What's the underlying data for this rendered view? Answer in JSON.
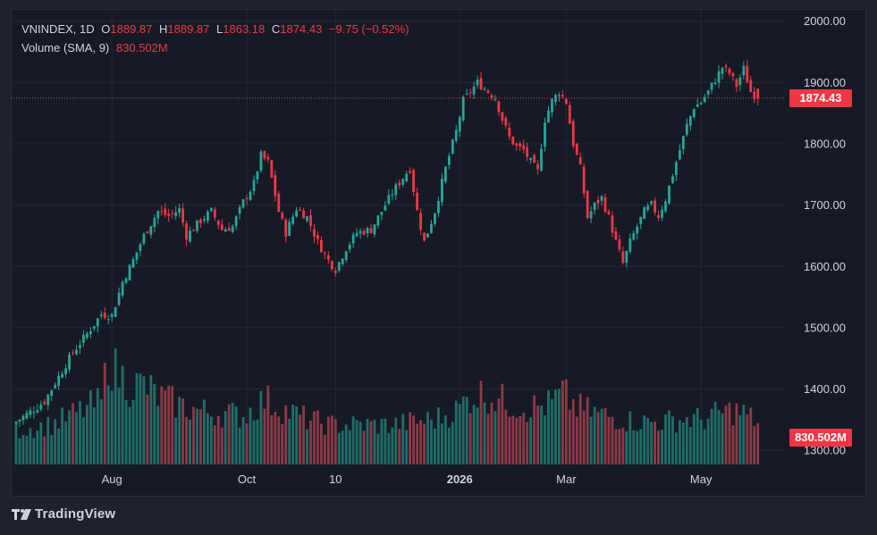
{
  "legend": {
    "symbol": "VNINDEX, 1D",
    "open_label": "O",
    "open": "1889.87",
    "high_label": "H",
    "high": "1889.87",
    "low_label": "L",
    "low": "1863.18",
    "close_label": "C",
    "close": "1874.43",
    "change": "−9.75 (−0.52%)",
    "volume_label": "Volume (SMA, 9)",
    "volume_value": "830.502M"
  },
  "price_tag": "1874.43",
  "volume_tag": "830.502M",
  "brand": "TradingView",
  "colors": {
    "up": "#26a69a",
    "down": "#f23645",
    "up_volume": "#1f6f69",
    "down_volume": "#8e3a47",
    "grid": "#232733",
    "text": "#d1d4dc",
    "panel": "#161a25",
    "background": "#1e222d"
  },
  "chart_data": {
    "type": "candlestick",
    "symbol": "VNINDEX",
    "interval": "1D",
    "y_axis": {
      "ticks": [
        "2000.00",
        "1900.00",
        "1800.00",
        "1700.00",
        "1600.00",
        "1500.00",
        "1400.00",
        "1300.00"
      ],
      "tick_values": [
        2000,
        1900,
        1800,
        1700,
        1600,
        1500,
        1400,
        1300
      ],
      "range": [
        1277,
        2020
      ],
      "position": "right"
    },
    "x_axis": {
      "labels": [
        {
          "text": "Aug",
          "bar": 27,
          "bold": false
        },
        {
          "text": "Oct",
          "bar": 65,
          "bold": false
        },
        {
          "text": "10",
          "bar": 90,
          "bold": false
        },
        {
          "text": "2026",
          "bar": 125,
          "bold": true
        },
        {
          "text": "Mar",
          "bar": 155,
          "bold": false
        },
        {
          "text": "May",
          "bar": 193,
          "bold": false
        }
      ]
    },
    "last_price": 1874.43,
    "grid": true,
    "volume_panel": {
      "overlay": "bottom",
      "sma_period": 9,
      "sma_value": "830.502M",
      "scale_max": 40
    },
    "anchors": [
      [
        0,
        1347
      ],
      [
        5,
        1367
      ],
      [
        8,
        1380
      ],
      [
        12,
        1420
      ],
      [
        16,
        1460
      ],
      [
        20,
        1490
      ],
      [
        24,
        1522
      ],
      [
        27,
        1520
      ],
      [
        30,
        1575
      ],
      [
        33,
        1610
      ],
      [
        36,
        1650
      ],
      [
        40,
        1690
      ],
      [
        43,
        1682
      ],
      [
        46,
        1693
      ],
      [
        48,
        1650
      ],
      [
        52,
        1675
      ],
      [
        55,
        1690
      ],
      [
        58,
        1660
      ],
      [
        61,
        1665
      ],
      [
        64,
        1705
      ],
      [
        67,
        1735
      ],
      [
        69,
        1781
      ],
      [
        71,
        1770
      ],
      [
        74,
        1690
      ],
      [
        76,
        1655
      ],
      [
        79,
        1695
      ],
      [
        82,
        1680
      ],
      [
        85,
        1640
      ],
      [
        88,
        1610
      ],
      [
        90,
        1595
      ],
      [
        93,
        1630
      ],
      [
        96,
        1655
      ],
      [
        100,
        1660
      ],
      [
        103,
        1690
      ],
      [
        106,
        1720
      ],
      [
        109,
        1745
      ],
      [
        111,
        1760
      ],
      [
        113,
        1690
      ],
      [
        115,
        1640
      ],
      [
        118,
        1690
      ],
      [
        121,
        1760
      ],
      [
        124,
        1820
      ],
      [
        126,
        1870
      ],
      [
        128,
        1885
      ],
      [
        130,
        1900
      ],
      [
        132,
        1890
      ],
      [
        134,
        1880
      ],
      [
        135,
        1875
      ],
      [
        137,
        1840
      ],
      [
        139,
        1810
      ],
      [
        141,
        1795
      ],
      [
        143,
        1790
      ],
      [
        145,
        1770
      ],
      [
        147,
        1755
      ],
      [
        149,
        1840
      ],
      [
        151,
        1870
      ],
      [
        153,
        1885
      ],
      [
        155,
        1868
      ],
      [
        157,
        1800
      ],
      [
        159,
        1760
      ],
      [
        161,
        1680
      ],
      [
        163,
        1700
      ],
      [
        165,
        1712
      ],
      [
        167,
        1680
      ],
      [
        169,
        1640
      ],
      [
        171,
        1605
      ],
      [
        173,
        1640
      ],
      [
        175,
        1665
      ],
      [
        177,
        1690
      ],
      [
        179,
        1700
      ],
      [
        181,
        1682
      ],
      [
        183,
        1710
      ],
      [
        185,
        1750
      ],
      [
        187,
        1790
      ],
      [
        189,
        1830
      ],
      [
        191,
        1860
      ],
      [
        193,
        1868
      ],
      [
        195,
        1885
      ],
      [
        197,
        1905
      ],
      [
        199,
        1925
      ],
      [
        201,
        1915
      ],
      [
        203,
        1895
      ],
      [
        205,
        1922
      ],
      [
        207,
        1885
      ],
      [
        209,
        1874.43
      ]
    ],
    "volume_anchors": [
      [
        0,
        12
      ],
      [
        10,
        14
      ],
      [
        20,
        20
      ],
      [
        24,
        22
      ],
      [
        26,
        38
      ],
      [
        28,
        33
      ],
      [
        32,
        28
      ],
      [
        36,
        28
      ],
      [
        40,
        24
      ],
      [
        44,
        22
      ],
      [
        48,
        20
      ],
      [
        52,
        19
      ],
      [
        56,
        18
      ],
      [
        60,
        18
      ],
      [
        64,
        17
      ],
      [
        70,
        23
      ],
      [
        76,
        19
      ],
      [
        82,
        16
      ],
      [
        88,
        14
      ],
      [
        94,
        14
      ],
      [
        100,
        14
      ],
      [
        106,
        14
      ],
      [
        112,
        15
      ],
      [
        118,
        16
      ],
      [
        124,
        19
      ],
      [
        128,
        24
      ],
      [
        132,
        25
      ],
      [
        138,
        22
      ],
      [
        144,
        20
      ],
      [
        150,
        21
      ],
      [
        154,
        25
      ],
      [
        158,
        20
      ],
      [
        164,
        18
      ],
      [
        170,
        16
      ],
      [
        176,
        15
      ],
      [
        182,
        15
      ],
      [
        188,
        16
      ],
      [
        194,
        16
      ],
      [
        198,
        18
      ],
      [
        202,
        19
      ],
      [
        205,
        18
      ],
      [
        209,
        15
      ]
    ]
  }
}
